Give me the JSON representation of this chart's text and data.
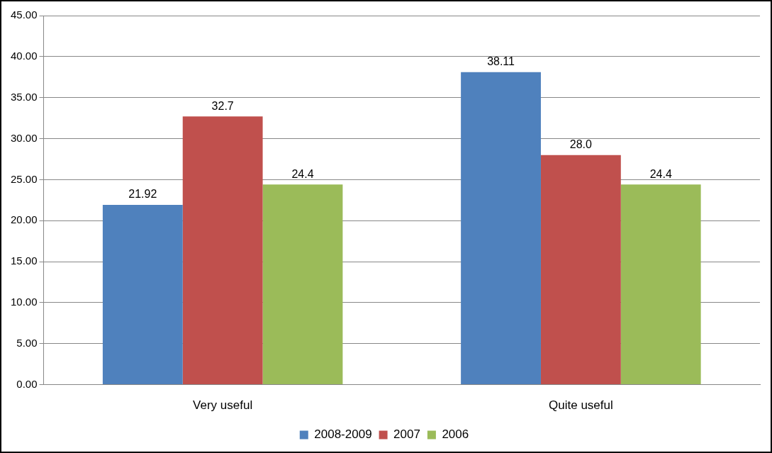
{
  "chart_data": {
    "type": "bar",
    "categories": [
      "Very useful",
      "Quite useful"
    ],
    "series": [
      {
        "name": "2008-2009",
        "color": "#4f81bd",
        "values": [
          21.92,
          38.11
        ],
        "value_labels": [
          "21.92",
          "38.11"
        ]
      },
      {
        "name": "2007",
        "color": "#c0504d",
        "values": [
          32.7,
          28.0
        ],
        "value_labels": [
          "32.7",
          "28.0"
        ]
      },
      {
        "name": "2006",
        "color": "#9bbb59",
        "values": [
          24.4,
          24.4
        ],
        "value_labels": [
          "24.4",
          "24.4"
        ]
      }
    ],
    "ylim": [
      0,
      45
    ],
    "yticks": [
      {
        "value": 0,
        "label": "0.00"
      },
      {
        "value": 5,
        "label": "5.00"
      },
      {
        "value": 10,
        "label": "10.00"
      },
      {
        "value": 15,
        "label": "15.00"
      },
      {
        "value": 20,
        "label": "20.00"
      },
      {
        "value": 25,
        "label": "25.00"
      },
      {
        "value": 30,
        "label": "30.00"
      },
      {
        "value": 35,
        "label": "35.00"
      },
      {
        "value": 40,
        "label": "40.00"
      },
      {
        "value": 45,
        "label": "45.00"
      }
    ],
    "grid": "y",
    "legend": "bottom"
  }
}
